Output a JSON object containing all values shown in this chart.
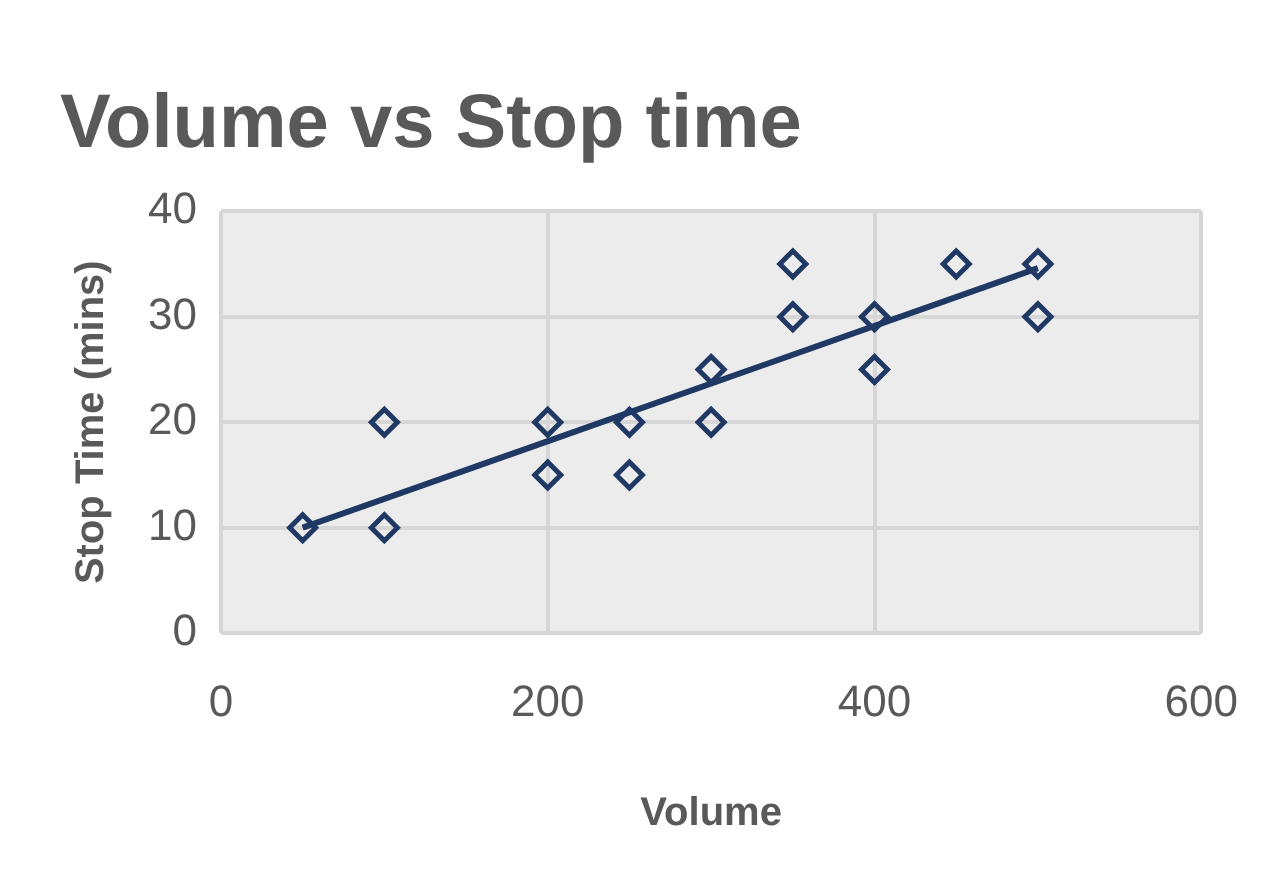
{
  "chart_data": {
    "type": "scatter",
    "title": "Volume vs Stop time",
    "xlabel": "Volume",
    "ylabel": "Stop Time (mins)",
    "x": [
      50,
      100,
      100,
      200,
      200,
      250,
      250,
      300,
      300,
      350,
      350,
      400,
      400,
      450,
      500,
      500
    ],
    "series": [
      {
        "color": "#1f3864",
        "marker": "diamond",
        "values": [
          10,
          20,
          10,
          20,
          15,
          20,
          15,
          25,
          20,
          35,
          30,
          30,
          25,
          35,
          35,
          30
        ]
      },
      {
        "type": "line",
        "color": "#1f3864",
        "x": [
          50,
          500
        ],
        "values": [
          10,
          34.6
        ],
        "marker": "none",
        "line_style": "solid"
      }
    ],
    "xlim": [
      0,
      600
    ],
    "xticks": [
      0,
      200,
      400,
      600
    ],
    "ylim": [
      0,
      40
    ],
    "yticks": [
      0,
      10,
      20,
      30,
      40
    ],
    "grid": true,
    "legend": false
  }
}
